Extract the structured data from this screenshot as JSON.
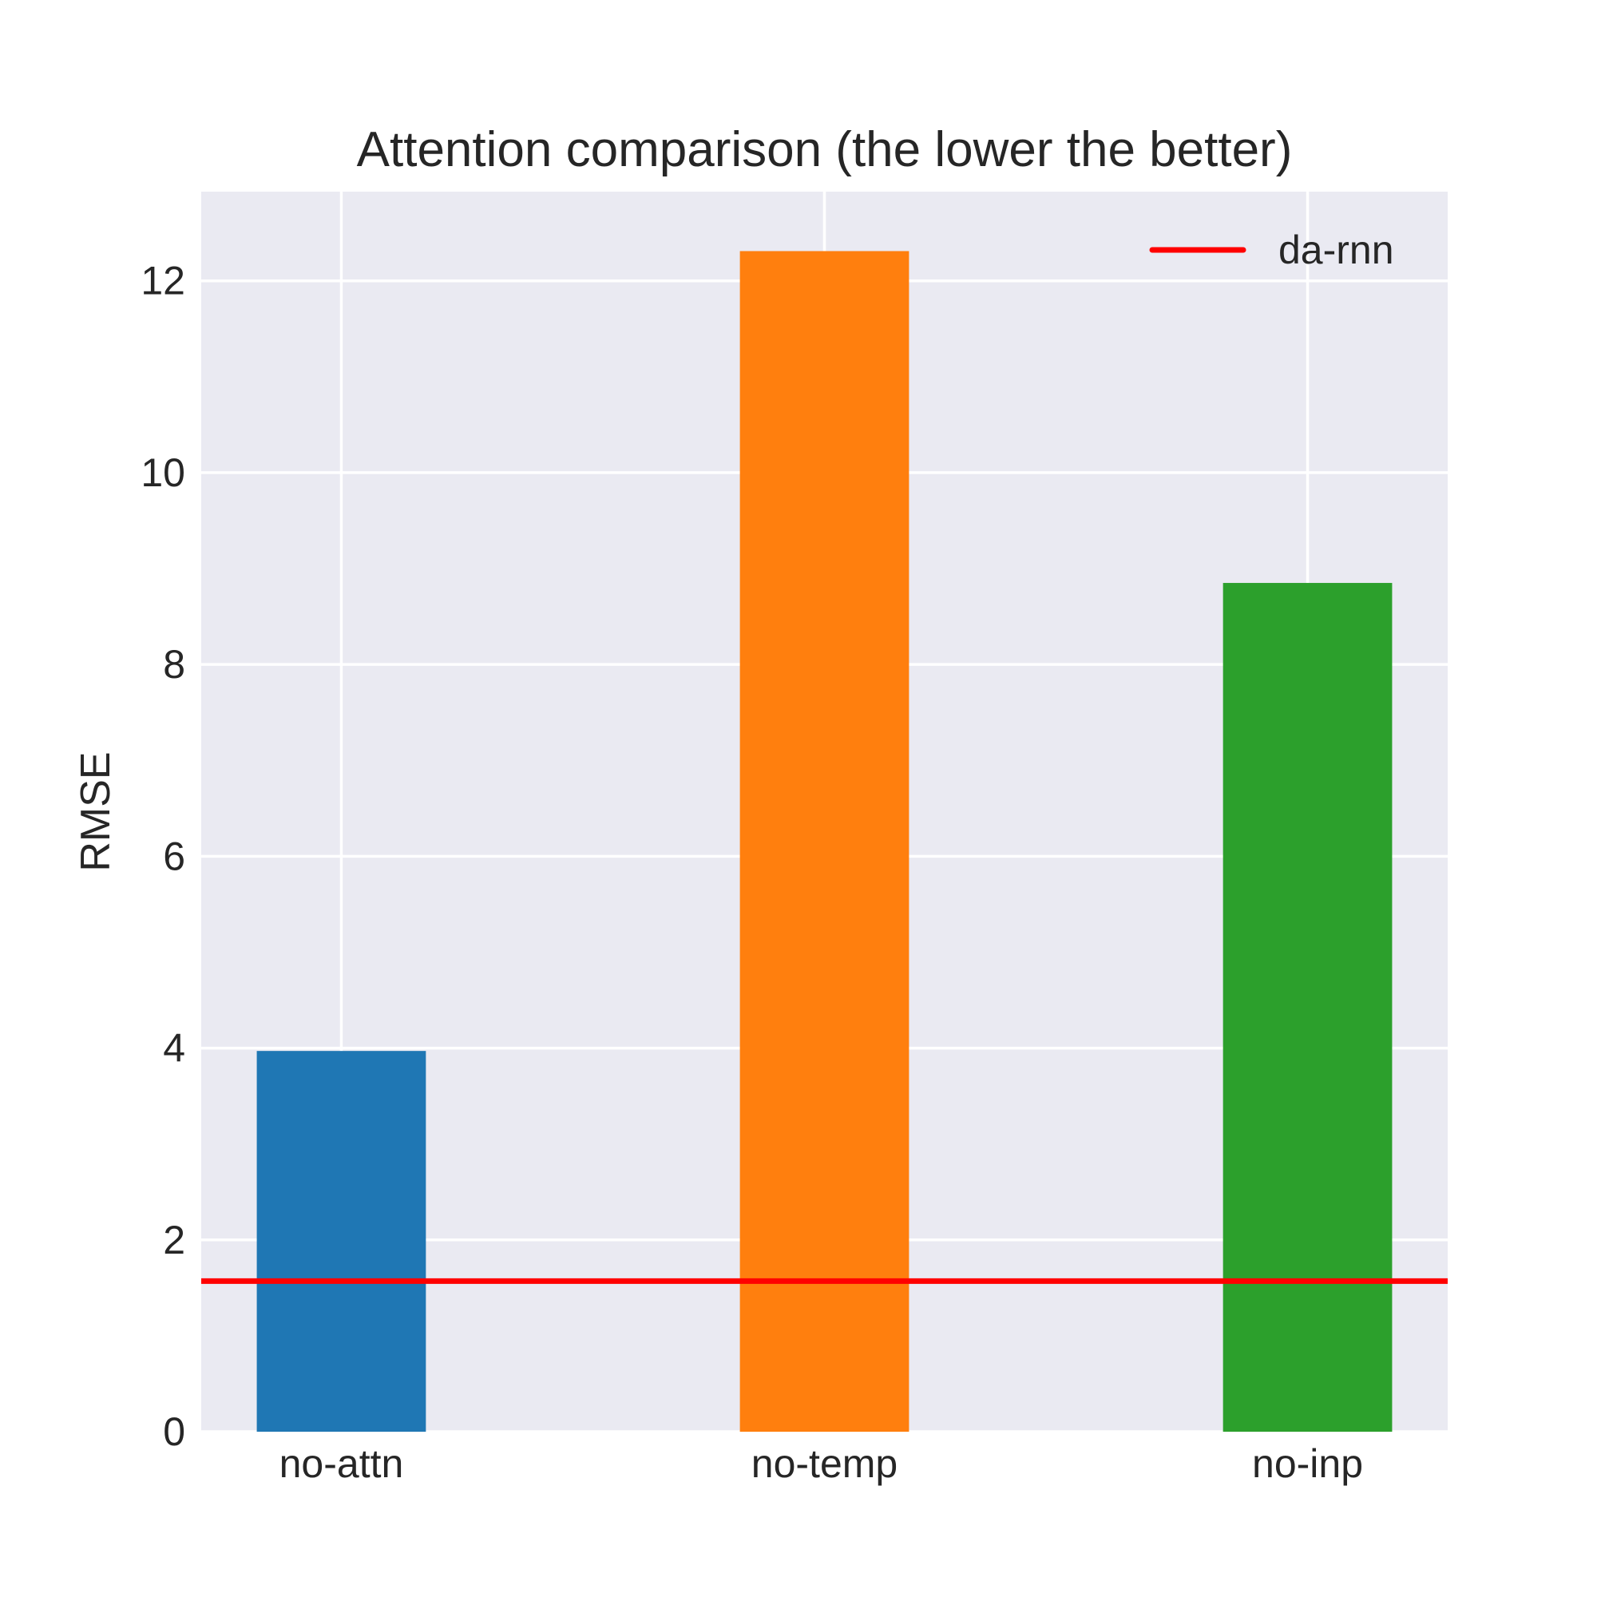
{
  "chart_data": {
    "type": "bar",
    "title": "Attention comparison (the lower the better)",
    "xlabel": "",
    "ylabel": "RMSE",
    "categories": [
      "no-attn",
      "no-temp",
      "no-inp"
    ],
    "values": [
      3.97,
      12.31,
      8.85
    ],
    "bar_colors": [
      "#1f77b4",
      "#ff7f0e",
      "#2ca02c"
    ],
    "ylim": [
      0,
      12.93
    ],
    "yticks": [
      0,
      2,
      4,
      6,
      8,
      10,
      12
    ],
    "grid": true,
    "reference_line": {
      "label": "da-rnn",
      "value": 1.57,
      "color": "#ff0000"
    },
    "legend": {
      "position": "top-right",
      "entries": [
        "da-rnn"
      ]
    },
    "style": {
      "axes_background": "#eaeaf2",
      "grid_color": "#ffffff",
      "text_color": "#262626"
    }
  }
}
